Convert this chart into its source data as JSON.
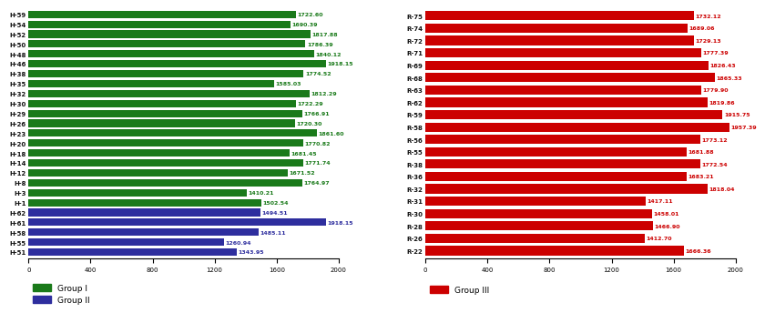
{
  "left_labels": [
    "H-59",
    "H-54",
    "H-52",
    "H-50",
    "H-48",
    "H-46",
    "H-38",
    "H-35",
    "H-32",
    "H-30",
    "H-29",
    "H-26",
    "H-23",
    "H-20",
    "H-18",
    "H-14",
    "H-12",
    "H-8",
    "H-3",
    "H-1",
    "H-62",
    "H-61",
    "H-58",
    "H-55",
    "H-51"
  ],
  "left_values": [
    1722.6,
    1690.39,
    1817.88,
    1786.39,
    1840.12,
    1918.15,
    1774.52,
    1585.03,
    1812.29,
    1722.29,
    1766.91,
    1720.3,
    1861.6,
    1770.82,
    1681.45,
    1771.74,
    1671.52,
    1764.97,
    1410.21,
    1502.54,
    1494.51,
    1918.15,
    1485.11,
    1260.94,
    1343.95
  ],
  "left_colors": [
    "#1a7a1a",
    "#1a7a1a",
    "#1a7a1a",
    "#1a7a1a",
    "#1a7a1a",
    "#1a7a1a",
    "#1a7a1a",
    "#1a7a1a",
    "#1a7a1a",
    "#1a7a1a",
    "#1a7a1a",
    "#1a7a1a",
    "#1a7a1a",
    "#1a7a1a",
    "#1a7a1a",
    "#1a7a1a",
    "#1a7a1a",
    "#1a7a1a",
    "#1a7a1a",
    "#1a7a1a",
    "#2e2e9e",
    "#2e2e9e",
    "#2e2e9e",
    "#2e2e9e",
    "#2e2e9e"
  ],
  "right_labels": [
    "R-75",
    "R-74",
    "R-72",
    "R-71",
    "R-69",
    "R-68",
    "R-63",
    "R-62",
    "R-59",
    "R-58",
    "R-56",
    "R-55",
    "R-38",
    "R-36",
    "R-32",
    "R-31",
    "R-30",
    "R-28",
    "R-26",
    "R-22"
  ],
  "right_values": [
    1732.12,
    1689.06,
    1729.13,
    1777.39,
    1826.43,
    1865.33,
    1779.9,
    1819.86,
    1915.75,
    1957.39,
    1773.12,
    1681.88,
    1772.54,
    1683.21,
    1818.04,
    1417.11,
    1458.01,
    1466.9,
    1412.7,
    1666.36
  ],
  "right_color": "#cc0000",
  "bar_height": 0.75,
  "xlim": [
    0,
    2000
  ],
  "xticks": [
    0,
    400,
    800,
    1200,
    1600,
    2000
  ],
  "label_fontsize": 5.0,
  "value_fontsize": 4.5,
  "legend_fontsize": 6.5,
  "group1_color": "#1a7a1a",
  "group2_color": "#2e2e9e",
  "group3_color": "#cc0000",
  "bg_color": "#ffffff"
}
